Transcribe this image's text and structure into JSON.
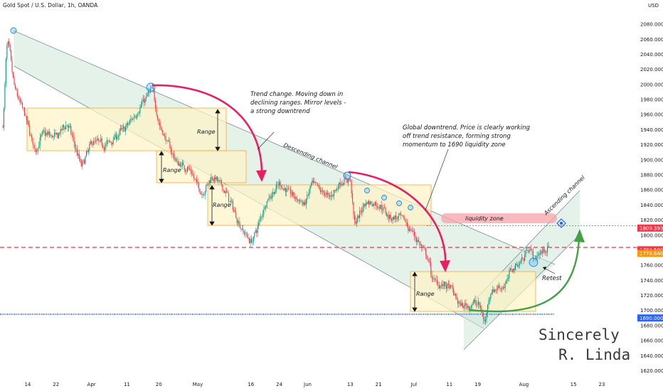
{
  "header": {
    "title": "Gold Spot / U.S. Dollar, 1h, OANDA",
    "currency": "USD"
  },
  "chart_data": {
    "type": "candlestick",
    "title": "Gold Spot / U.S. Dollar, 1h, OANDA",
    "y_unit": "USD",
    "ylim": [
      1612,
      2098
    ],
    "y_ticks": [
      "2080.000",
      "2060.000",
      "2040.000",
      "2020.000",
      "2000.000",
      "1980.000",
      "1960.000",
      "1940.000",
      "1920.000",
      "1900.000",
      "1880.000",
      "1860.000",
      "1840.000",
      "1820.000",
      "1800.000",
      "1760.000",
      "1740.000",
      "1720.000",
      "1700.000",
      "1680.000",
      "1660.000",
      "1640.000",
      "1620.000"
    ],
    "x_ticks": [
      "14",
      "22",
      "Apr",
      "11",
      "20",
      "May",
      "16",
      "24",
      "Jun",
      "13",
      "21",
      "Jul",
      "11",
      "19",
      "Aug",
      "15",
      "23"
    ],
    "price_path": [
      {
        "date": "Mar 7",
        "price": 1945
      },
      {
        "date": "Mar 8",
        "price": 2070
      },
      {
        "date": "Mar 10",
        "price": 1995
      },
      {
        "date": "Mar 13",
        "price": 1960
      },
      {
        "date": "Mar 16",
        "price": 1910
      },
      {
        "date": "Mar 18",
        "price": 1935
      },
      {
        "date": "Mar 22",
        "price": 1930
      },
      {
        "date": "Mar 25",
        "price": 1950
      },
      {
        "date": "Mar 29",
        "price": 1890
      },
      {
        "date": "Apr 1",
        "price": 1925
      },
      {
        "date": "Apr 5",
        "price": 1920
      },
      {
        "date": "Apr 11",
        "price": 1945
      },
      {
        "date": "Apr 18",
        "price": 1995
      },
      {
        "date": "Apr 20",
        "price": 1945
      },
      {
        "date": "Apr 25",
        "price": 1895
      },
      {
        "date": "Apr 28",
        "price": 1890
      },
      {
        "date": "May 2",
        "price": 1855
      },
      {
        "date": "May 5",
        "price": 1880
      },
      {
        "date": "May 9",
        "price": 1855
      },
      {
        "date": "May 13",
        "price": 1810
      },
      {
        "date": "May 16",
        "price": 1790
      },
      {
        "date": "May 18",
        "price": 1815
      },
      {
        "date": "May 20",
        "price": 1845
      },
      {
        "date": "May 24",
        "price": 1868
      },
      {
        "date": "May 27",
        "price": 1855
      },
      {
        "date": "May 31",
        "price": 1840
      },
      {
        "date": "Jun 2",
        "price": 1868
      },
      {
        "date": "Jun 7",
        "price": 1850
      },
      {
        "date": "Jun 10",
        "price": 1870
      },
      {
        "date": "Jun 13",
        "price": 1875
      },
      {
        "date": "Jun 14",
        "price": 1810
      },
      {
        "date": "Jun 17",
        "price": 1845
      },
      {
        "date": "Jun 21",
        "price": 1840
      },
      {
        "date": "Jun 24",
        "price": 1825
      },
      {
        "date": "Jun 28",
        "price": 1820
      },
      {
        "date": "Jun 30",
        "price": 1805
      },
      {
        "date": "Jul 1",
        "price": 1800
      },
      {
        "date": "Jul 5",
        "price": 1765
      },
      {
        "date": "Jul 6",
        "price": 1740
      },
      {
        "date": "Jul 11",
        "price": 1730
      },
      {
        "date": "Jul 14",
        "price": 1705
      },
      {
        "date": "Jul 19",
        "price": 1710
      },
      {
        "date": "Jul 21",
        "price": 1680
      },
      {
        "date": "Jul 22",
        "price": 1725
      },
      {
        "date": "Jul 27",
        "price": 1735
      },
      {
        "date": "Jul 28",
        "price": 1755
      },
      {
        "date": "Aug 1",
        "price": 1770
      },
      {
        "date": "Aug 2",
        "price": 1790
      },
      {
        "date": "Aug 4",
        "price": 1765
      },
      {
        "date": "Aug 5",
        "price": 1775
      },
      {
        "date": "Aug 8",
        "price": 1785
      }
    ],
    "price_labels": [
      {
        "value": "1809.393",
        "color": "#f23645"
      },
      {
        "value": "1780.500",
        "color": "#f23645"
      },
      {
        "value": "1778.640",
        "color": "#ff9800"
      },
      {
        "value": "1690.000",
        "color": "#2962ff"
      }
    ],
    "levels": [
      {
        "price": 1809.393,
        "color": "#f23645",
        "style": "dotted"
      },
      {
        "price": 1780.5,
        "color": "#f23645",
        "style": "dashed"
      },
      {
        "price": 1690.0,
        "color": "#2962ff",
        "style": "solid"
      }
    ],
    "annotations": [
      {
        "id": "trend",
        "lines": [
          "Trend change. Moving down in",
          "declining ranges. Mirror levels -",
          "a strong downtrend"
        ]
      },
      {
        "id": "global",
        "lines": [
          "Global downtrend. Price is clearly working",
          "off trend resistance, forming strong",
          "momentum to 1690 liquidity zone"
        ]
      },
      {
        "id": "desc",
        "lines": [
          "Descending channel"
        ]
      },
      {
        "id": "asc",
        "lines": [
          "Ascending channel"
        ]
      },
      {
        "id": "liq",
        "lines": [
          "liquidity zone"
        ]
      },
      {
        "id": "retest",
        "lines": [
          "Retest"
        ]
      }
    ],
    "range_labels": [
      "Range",
      "Range",
      "Range",
      "Range"
    ],
    "signature": [
      "Sincerely",
      "R. Linda"
    ],
    "colors": {
      "up": "#089981",
      "down": "#f23645",
      "range_fill": "#fff3c4",
      "range_border": "#f2a93b",
      "channel_fill": "#cfe8d8",
      "arrow_red": "#e91e63",
      "arrow_green": "#43a047",
      "liquidity": "#f5a3a8"
    }
  }
}
